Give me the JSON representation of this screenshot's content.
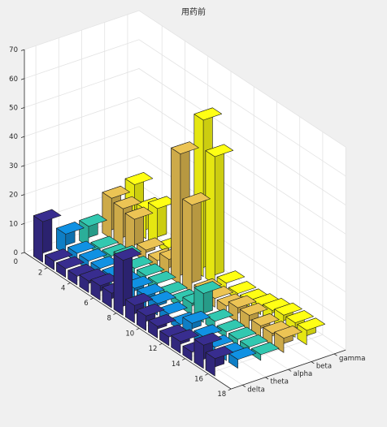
{
  "chart_data": {
    "type": "bar3",
    "title": "用药前",
    "x": [
      1,
      2,
      3,
      4,
      5,
      6,
      7,
      8,
      9,
      10,
      11,
      12,
      13,
      14,
      15,
      16,
      17
    ],
    "x_ticks": [
      "2",
      "4",
      "6",
      "8",
      "10",
      "12",
      "14",
      "16",
      "18"
    ],
    "x_tick_values": [
      2,
      4,
      6,
      8,
      10,
      12,
      14,
      16,
      18
    ],
    "xlim": [
      0,
      18
    ],
    "y_categories": [
      "delta",
      "theta",
      "alpha",
      "beta",
      "gamma"
    ],
    "zlim": [
      0,
      70
    ],
    "z_ticks": [
      "0",
      "10",
      "20",
      "30",
      "40",
      "50",
      "60",
      "70"
    ],
    "z_tick_values": [
      0,
      10,
      20,
      30,
      40,
      50,
      60,
      70
    ],
    "grid": true,
    "series": [
      {
        "name": "delta",
        "color": "#352a87",
        "values": [
          14,
          3,
          3,
          3,
          4,
          5,
          5,
          19,
          6,
          5,
          4,
          3,
          4,
          3,
          8,
          6,
          0
        ]
      },
      {
        "name": "theta",
        "color": "#0f89d6",
        "values": [
          7,
          3,
          3,
          3,
          3,
          3,
          4,
          4,
          4,
          3,
          2,
          5,
          3,
          2,
          2,
          3,
          0
        ]
      },
      {
        "name": "alpha",
        "color": "#2fbda6",
        "values": [
          7,
          2,
          2,
          4,
          3,
          3,
          3,
          2,
          2,
          4,
          10,
          3,
          2,
          2,
          2,
          2,
          0
        ]
      },
      {
        "name": "beta",
        "color": "#dfb94f",
        "values": [
          14,
          13,
          12,
          4,
          3,
          6,
          45,
          30,
          3,
          3,
          3,
          5,
          5,
          4,
          4,
          5,
          0
        ]
      },
      {
        "name": "gamma",
        "color": "#f9fa13",
        "values": [
          16,
          10,
          13,
          2,
          3,
          4,
          54,
          44,
          3,
          2,
          2,
          3,
          4,
          5,
          5,
          5,
          0
        ]
      }
    ]
  }
}
